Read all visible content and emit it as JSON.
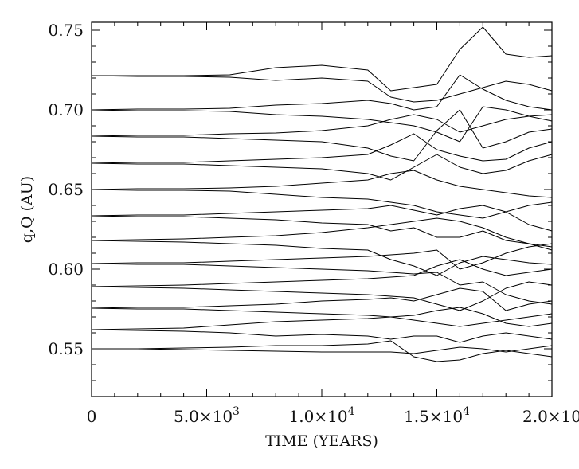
{
  "chart_data": {
    "type": "line",
    "title": "",
    "xlabel": "TIME (YEARS)",
    "ylabel": "q,Q (AU)",
    "xlim": [
      0,
      20000
    ],
    "ylim": [
      0.52,
      0.755
    ],
    "grid": false,
    "legend": "none",
    "line_color": "#000000",
    "x_ticks": [
      {
        "value": 0,
        "label": "0"
      },
      {
        "value": 5000,
        "label": "5.0×10",
        "exp": "3"
      },
      {
        "value": 10000,
        "label": "1.0×10",
        "exp": "4"
      },
      {
        "value": 15000,
        "label": "1.5×10",
        "exp": "4"
      },
      {
        "value": 20000,
        "label": "2.0×10",
        "exp": ""
      }
    ],
    "y_ticks": [
      {
        "value": 0.55,
        "label": "0.55"
      },
      {
        "value": 0.6,
        "label": "0.60"
      },
      {
        "value": 0.65,
        "label": "0.65"
      },
      {
        "value": 0.7,
        "label": "0.70"
      },
      {
        "value": 0.75,
        "label": "0.75"
      }
    ],
    "x": [
      0,
      2000,
      4000,
      6000,
      8000,
      10000,
      12000,
      13000,
      14000,
      15000,
      16000,
      17000,
      18000,
      19000,
      20000
    ],
    "series": [
      {
        "values": [
          0.7215,
          0.7215,
          0.7215,
          0.722,
          0.7265,
          0.728,
          0.725,
          0.712,
          0.714,
          0.716,
          0.738,
          0.752,
          0.735,
          0.733,
          0.734
        ]
      },
      {
        "values": [
          0.7215,
          0.721,
          0.721,
          0.7205,
          0.7185,
          0.72,
          0.718,
          0.708,
          0.705,
          0.706,
          0.71,
          0.714,
          0.718,
          0.716,
          0.712
        ]
      },
      {
        "values": [
          0.7,
          0.7005,
          0.7005,
          0.701,
          0.703,
          0.704,
          0.706,
          0.704,
          0.7,
          0.702,
          0.722,
          0.713,
          0.706,
          0.702,
          0.7
        ]
      },
      {
        "values": [
          0.7,
          0.6995,
          0.6995,
          0.699,
          0.697,
          0.696,
          0.694,
          0.692,
          0.69,
          0.686,
          0.68,
          0.702,
          0.7,
          0.696,
          0.693
        ]
      },
      {
        "values": [
          0.6835,
          0.684,
          0.684,
          0.685,
          0.6855,
          0.687,
          0.69,
          0.694,
          0.697,
          0.694,
          0.686,
          0.69,
          0.694,
          0.696,
          0.697
        ]
      },
      {
        "values": [
          0.6835,
          0.683,
          0.683,
          0.682,
          0.681,
          0.68,
          0.676,
          0.671,
          0.668,
          0.687,
          0.7,
          0.676,
          0.68,
          0.686,
          0.688
        ]
      },
      {
        "values": [
          0.6665,
          0.667,
          0.667,
          0.668,
          0.669,
          0.67,
          0.672,
          0.678,
          0.685,
          0.675,
          0.671,
          0.668,
          0.669,
          0.676,
          0.68
        ]
      },
      {
        "values": [
          0.6665,
          0.666,
          0.666,
          0.665,
          0.664,
          0.663,
          0.66,
          0.656,
          0.664,
          0.672,
          0.664,
          0.66,
          0.662,
          0.668,
          0.672
        ]
      },
      {
        "values": [
          0.65,
          0.6505,
          0.6505,
          0.651,
          0.652,
          0.654,
          0.656,
          0.66,
          0.662,
          0.656,
          0.652,
          0.65,
          0.648,
          0.646,
          0.645
        ]
      },
      {
        "values": [
          0.65,
          0.6495,
          0.6495,
          0.649,
          0.647,
          0.645,
          0.644,
          0.642,
          0.64,
          0.636,
          0.634,
          0.632,
          0.636,
          0.64,
          0.642
        ]
      },
      {
        "values": [
          0.6335,
          0.634,
          0.634,
          0.635,
          0.636,
          0.637,
          0.638,
          0.64,
          0.637,
          0.634,
          0.638,
          0.64,
          0.636,
          0.628,
          0.624
        ]
      },
      {
        "values": [
          0.6335,
          0.633,
          0.633,
          0.632,
          0.631,
          0.629,
          0.628,
          0.624,
          0.626,
          0.62,
          0.62,
          0.624,
          0.618,
          0.616,
          0.614
        ]
      },
      {
        "values": [
          0.618,
          0.6185,
          0.619,
          0.62,
          0.621,
          0.623,
          0.626,
          0.628,
          0.63,
          0.632,
          0.63,
          0.626,
          0.62,
          0.616,
          0.612
        ]
      },
      {
        "values": [
          0.618,
          0.6175,
          0.617,
          0.616,
          0.615,
          0.613,
          0.612,
          0.606,
          0.602,
          0.596,
          0.604,
          0.608,
          0.606,
          0.604,
          0.603
        ]
      },
      {
        "values": [
          0.6035,
          0.604,
          0.604,
          0.605,
          0.606,
          0.607,
          0.608,
          0.609,
          0.61,
          0.612,
          0.6,
          0.604,
          0.61,
          0.614,
          0.616
        ]
      },
      {
        "values": [
          0.6035,
          0.603,
          0.603,
          0.602,
          0.601,
          0.6,
          0.599,
          0.598,
          0.597,
          0.598,
          0.59,
          0.592,
          0.584,
          0.58,
          0.578
        ]
      },
      {
        "values": [
          0.589,
          0.5895,
          0.59,
          0.591,
          0.592,
          0.593,
          0.594,
          0.595,
          0.596,
          0.602,
          0.606,
          0.6,
          0.596,
          0.598,
          0.6
        ]
      },
      {
        "values": [
          0.589,
          0.5885,
          0.588,
          0.587,
          0.586,
          0.585,
          0.584,
          0.583,
          0.582,
          0.578,
          0.574,
          0.58,
          0.588,
          0.592,
          0.59
        ]
      },
      {
        "values": [
          0.5755,
          0.576,
          0.576,
          0.577,
          0.578,
          0.58,
          0.581,
          0.582,
          0.58,
          0.584,
          0.588,
          0.586,
          0.574,
          0.578,
          0.58
        ]
      },
      {
        "values": [
          0.5755,
          0.575,
          0.575,
          0.574,
          0.573,
          0.572,
          0.571,
          0.57,
          0.568,
          0.566,
          0.564,
          0.566,
          0.568,
          0.57,
          0.572
        ]
      },
      {
        "values": [
          0.562,
          0.5625,
          0.563,
          0.565,
          0.567,
          0.568,
          0.569,
          0.57,
          0.571,
          0.574,
          0.576,
          0.572,
          0.566,
          0.564,
          0.566
        ]
      },
      {
        "values": [
          0.562,
          0.5615,
          0.561,
          0.56,
          0.558,
          0.559,
          0.558,
          0.556,
          0.558,
          0.558,
          0.554,
          0.558,
          0.56,
          0.558,
          0.556
        ]
      },
      {
        "values": [
          0.55,
          0.55,
          0.5505,
          0.551,
          0.552,
          0.552,
          0.553,
          0.555,
          0.545,
          0.542,
          0.543,
          0.547,
          0.549,
          0.547,
          0.545
        ]
      },
      {
        "values": [
          0.55,
          0.55,
          0.5495,
          0.549,
          0.5485,
          0.548,
          0.548,
          0.548,
          0.547,
          0.549,
          0.551,
          0.55,
          0.548,
          0.55,
          0.552
        ]
      }
    ]
  }
}
